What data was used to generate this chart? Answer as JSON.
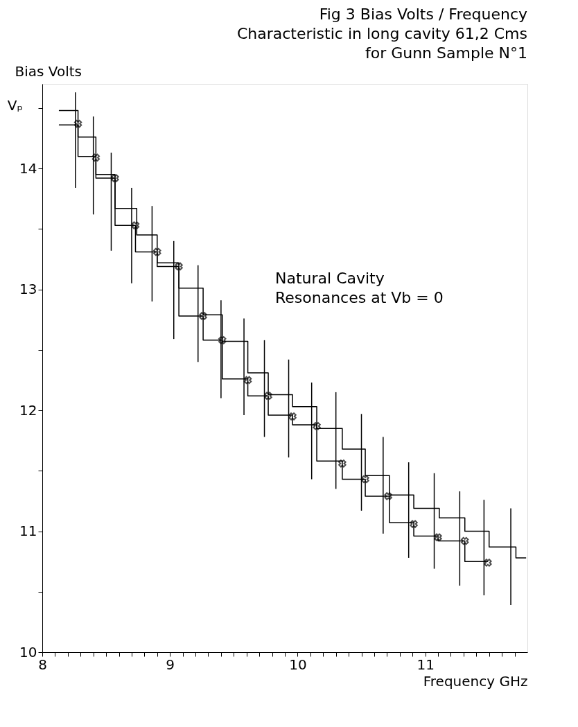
{
  "chart_data": {
    "type": "line",
    "title": "Fig 3  Bias Volts / Frequency\nCharacteristic in long cavity 61,2 Cms\nfor Gunn Sample N°1",
    "xlabel": "Frequency GHz",
    "ylabel": "Bias Volts",
    "annotations": [
      "Vₚ",
      "Natural Cavity\nResonances at Vb = 0"
    ],
    "xlim": [
      8,
      11.8
    ],
    "ylim": [
      10,
      14.7
    ],
    "xticks": [
      8,
      {
        "value": 8.1,
        "label": null
      },
      {
        "value": 8.2,
        "label": null
      },
      {
        "value": 8.3,
        "label": null
      },
      {
        "value": 8.4,
        "label": null
      },
      {
        "value": 8.5,
        "label": null
      },
      {
        "value": 8.6,
        "label": null
      },
      {
        "value": 8.7,
        "label": null
      },
      {
        "value": 8.8,
        "label": null
      },
      {
        "value": 8.9,
        "label": null
      },
      9,
      {
        "value": 9.1,
        "label": null
      },
      {
        "value": 9.2,
        "label": null
      },
      {
        "value": 9.3,
        "label": null
      },
      {
        "value": 9.4,
        "label": null
      },
      {
        "value": 9.5,
        "label": null
      },
      {
        "value": 9.6,
        "label": null
      },
      {
        "value": 9.7,
        "label": null
      },
      {
        "value": 9.8,
        "label": null
      },
      {
        "value": 9.9,
        "label": null
      },
      10,
      {
        "value": 10.1,
        "label": null
      },
      {
        "value": 10.2,
        "label": null
      },
      {
        "value": 10.3,
        "label": null
      },
      {
        "value": 10.4,
        "label": null
      },
      {
        "value": 10.5,
        "label": null
      },
      {
        "value": 10.6,
        "label": null
      },
      {
        "value": 10.7,
        "label": null
      },
      {
        "value": 10.8,
        "label": null
      },
      {
        "value": 10.9,
        "label": null
      },
      11,
      {
        "value": 11.1,
        "label": null
      },
      {
        "value": 11.2,
        "label": null
      },
      {
        "value": 11.3,
        "label": null
      },
      {
        "value": 11.4,
        "label": null
      },
      {
        "value": 11.5,
        "label": null
      },
      {
        "value": 11.6,
        "label": null
      },
      {
        "value": 11.7,
        "label": null
      }
    ],
    "yticks": [
      10,
      {
        "value": 10.5,
        "label": null
      },
      11,
      {
        "value": 11.5,
        "label": null
      },
      12,
      {
        "value": 12.5,
        "label": null
      },
      13,
      {
        "value": 13.5,
        "label": null
      },
      14,
      {
        "value": 14.5,
        "label": null
      }
    ],
    "grid": false,
    "line_style": "solid",
    "series": [
      {
        "type": "line",
        "color": "#000000",
        "x": [
          8.13,
          8.28,
          8.28,
          8.42,
          8.42,
          8.57,
          8.57,
          8.74,
          8.74,
          8.9,
          8.9,
          9.07,
          9.07,
          9.26,
          9.26,
          9.41,
          9.41,
          9.61,
          9.61,
          9.77,
          9.77,
          9.96,
          9.96,
          10.15,
          10.15,
          10.35,
          10.35,
          10.53,
          10.53,
          10.72,
          10.72,
          10.91,
          10.91,
          11.11,
          11.11,
          11.31,
          11.31,
          11.5,
          11.5,
          11.71,
          11.71,
          11.79
        ],
        "values": [
          14.48,
          14.48,
          14.26,
          14.26,
          13.95,
          13.95,
          13.67,
          13.67,
          13.45,
          13.45,
          13.22,
          13.22,
          13.01,
          13.01,
          12.79,
          12.79,
          12.57,
          12.57,
          12.31,
          12.31,
          12.13,
          12.13,
          12.03,
          12.03,
          11.85,
          11.85,
          11.68,
          11.68,
          11.46,
          11.46,
          11.3,
          11.3,
          11.19,
          11.19,
          11.11,
          11.11,
          11.0,
          11.0,
          10.87,
          10.87,
          10.78,
          10.78
        ]
      },
      {
        "type": "line",
        "color": "#000000",
        "x": [
          8.13,
          8.28,
          8.28,
          8.42,
          8.42,
          8.57,
          8.57,
          8.73,
          8.73,
          8.9,
          8.9,
          9.07,
          9.07,
          9.26,
          9.26,
          9.41,
          9.41,
          9.61,
          9.61,
          9.77,
          9.77,
          9.96,
          9.96,
          10.15,
          10.15,
          10.35,
          10.35,
          10.53,
          10.53,
          10.72,
          10.72,
          10.91,
          10.91,
          11.1,
          11.1,
          11.31,
          11.31,
          11.49
        ],
        "values": [
          14.36,
          14.36,
          14.1,
          14.1,
          13.92,
          13.92,
          13.53,
          13.53,
          13.31,
          13.31,
          13.19,
          13.19,
          12.78,
          12.78,
          12.58,
          12.58,
          12.26,
          12.26,
          12.12,
          12.12,
          11.96,
          11.96,
          11.88,
          11.88,
          11.58,
          11.58,
          11.43,
          11.43,
          11.29,
          11.29,
          11.07,
          11.07,
          10.96,
          10.96,
          10.92,
          10.92,
          10.75,
          10.75
        ]
      },
      {
        "type": "scatter",
        "marker": "cross",
        "color": "#000000",
        "x": [
          8.28,
          8.42,
          8.57,
          8.73,
          8.9,
          9.07,
          9.26,
          9.41,
          9.61,
          9.77,
          9.96,
          10.15,
          10.35,
          10.53,
          10.71,
          10.91,
          11.1,
          11.31,
          11.49
        ],
        "values": [
          14.37,
          14.09,
          13.92,
          13.53,
          13.31,
          13.19,
          12.78,
          12.58,
          12.25,
          12.12,
          11.95,
          11.87,
          11.56,
          11.43,
          11.29,
          11.06,
          10.95,
          10.92,
          10.74
        ]
      },
      {
        "type": "line",
        "color": "#000000",
        "x": [
          8.26,
          8.26,
          null,
          8.4,
          8.4,
          null,
          8.54,
          8.54,
          null,
          8.7,
          8.7,
          null,
          8.86,
          8.86,
          null,
          9.03,
          9.03,
          null,
          9.22,
          9.22,
          null,
          9.4,
          9.4,
          null,
          9.58,
          9.58,
          null,
          9.74,
          9.74,
          null,
          9.93,
          9.93,
          null,
          10.11,
          10.11,
          null,
          10.3,
          10.3,
          null,
          10.5,
          10.5,
          null,
          10.67,
          10.67,
          null,
          10.87,
          10.87,
          null,
          11.07,
          11.07,
          null,
          11.27,
          11.27,
          null,
          11.46,
          11.46,
          null,
          11.67,
          11.67
        ],
        "values": [
          13.84,
          14.63,
          null,
          13.62,
          14.43,
          null,
          13.32,
          14.13,
          null,
          13.05,
          13.84,
          null,
          12.9,
          13.69,
          null,
          12.59,
          13.4,
          null,
          12.4,
          13.2,
          null,
          12.1,
          12.91,
          null,
          11.96,
          12.76,
          null,
          11.78,
          12.58,
          null,
          11.61,
          12.42,
          null,
          11.43,
          12.23,
          null,
          11.35,
          12.15,
          null,
          11.17,
          11.97,
          null,
          10.98,
          11.78,
          null,
          10.78,
          11.57,
          null,
          10.69,
          11.48,
          null,
          10.55,
          11.33,
          null,
          10.47,
          11.26,
          null,
          10.39,
          11.19
        ]
      }
    ]
  }
}
